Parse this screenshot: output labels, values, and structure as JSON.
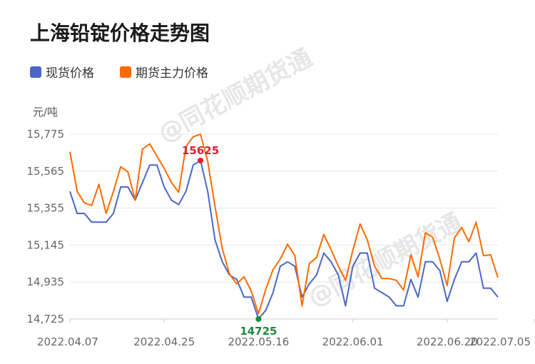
{
  "chart_data": {
    "type": "line",
    "title": "上海铅锭价格走势图",
    "ylabel": "元/吨",
    "ylim": [
      14725,
      15775
    ],
    "yticks": [
      14725,
      14935,
      15145,
      15355,
      15565,
      15775
    ],
    "ytick_labels": [
      "14,725",
      "14,935",
      "15,145",
      "15,355",
      "15,565",
      "15,775"
    ],
    "xtick_labels": [
      "2022.04.07",
      "2022.04.25",
      "2022.05.16",
      "2022.06.01",
      "2022.06.20",
      "2022.07.05"
    ],
    "xtick_index": [
      0,
      13,
      26,
      39,
      52,
      64
    ],
    "legend_position": "top-left",
    "grid": true,
    "series": [
      {
        "name": "现货价格",
        "color": "#4a66c8",
        "values": [
          15450,
          15325,
          15325,
          15275,
          15275,
          15275,
          15325,
          15475,
          15475,
          15400,
          15500,
          15600,
          15600,
          15475,
          15400,
          15375,
          15450,
          15600,
          15625,
          15450,
          15175,
          15050,
          14975,
          14950,
          14850,
          14850,
          14725,
          14775,
          14875,
          15025,
          15050,
          15025,
          14850,
          14925,
          14975,
          15100,
          15050,
          14975,
          14800,
          15025,
          15100,
          15100,
          14900,
          14875,
          14850,
          14800,
          14800,
          14950,
          14850,
          15050,
          15050,
          15000,
          14825,
          14950,
          15050,
          15050,
          15100,
          14900,
          14900,
          14850
        ]
      },
      {
        "name": "期货主力价格",
        "color": "#ff6a00",
        "values": [
          15675,
          15450,
          15385,
          15370,
          15490,
          15325,
          15450,
          15590,
          15560,
          15400,
          15690,
          15720,
          15650,
          15580,
          15500,
          15445,
          15705,
          15760,
          15775,
          15620,
          15365,
          15125,
          14980,
          14925,
          14965,
          14885,
          14755,
          14895,
          15005,
          15065,
          15150,
          15085,
          14800,
          15040,
          15075,
          15205,
          15120,
          15025,
          14945,
          15115,
          15265,
          15175,
          15025,
          14955,
          14955,
          14945,
          14890,
          15090,
          14965,
          15215,
          15190,
          15065,
          14915,
          15185,
          15245,
          15165,
          15275,
          15085,
          15090,
          14960
        ]
      }
    ],
    "annotations": [
      {
        "label": "15625",
        "series": 0,
        "index": 18,
        "color": "#e01e2e",
        "type": "max"
      },
      {
        "label": "14725",
        "series": 0,
        "index": 26,
        "color": "#1a8a3a",
        "type": "min"
      }
    ]
  },
  "legend": {
    "items": [
      {
        "label": "现货价格",
        "color": "#4a66c8"
      },
      {
        "label": "期货主力价格",
        "color": "#ff6a00"
      }
    ]
  },
  "watermark": "@同花顺期货通"
}
